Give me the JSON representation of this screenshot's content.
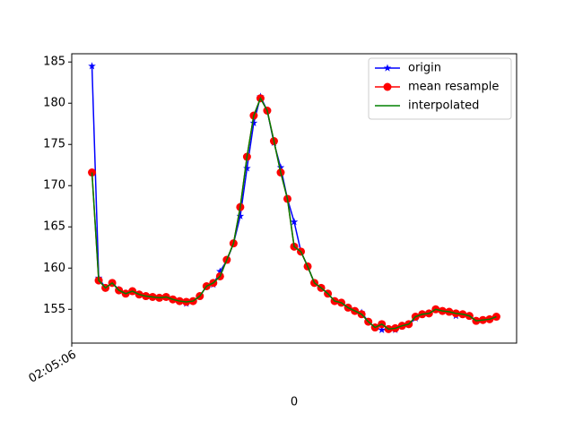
{
  "chart_data": {
    "type": "line",
    "xlabel": "0",
    "x": [
      0,
      1,
      2,
      3,
      4,
      5,
      6,
      7,
      8,
      9,
      10,
      11,
      12,
      13,
      14,
      15,
      16,
      17,
      18,
      19,
      20,
      21,
      22,
      23,
      24,
      25,
      26,
      27,
      28,
      29,
      30,
      31,
      32,
      33,
      34,
      35,
      36,
      37,
      38,
      39,
      40,
      41,
      42,
      43,
      44,
      45,
      46,
      47,
      48,
      49,
      50,
      51,
      52,
      53,
      54,
      55,
      56,
      57,
      58,
      59,
      60
    ],
    "xlim": [
      -3,
      63
    ],
    "xticks": [
      {
        "value": -3,
        "label": "02:05:06"
      }
    ],
    "ylim": [
      150.9,
      186.0
    ],
    "yticks": [
      155,
      160,
      165,
      170,
      175,
      180,
      185
    ],
    "legend": "upper right",
    "series": [
      {
        "name": "origin",
        "color": "#0000ff",
        "marker": "star",
        "values": [
          184.5,
          158.8,
          157.6,
          158.2,
          157.4,
          156.9,
          157.2,
          156.8,
          156.6,
          156.5,
          156.4,
          156.5,
          156.2,
          156.0,
          155.7,
          156.0,
          156.6,
          157.8,
          158.0,
          159.6,
          160.9,
          163.0,
          166.3,
          172.1,
          177.6,
          180.8,
          179.1,
          175.2,
          172.2,
          168.4,
          165.6,
          162.0,
          160.2,
          158.2,
          157.6,
          156.9,
          156.0,
          155.8,
          155.2,
          154.8,
          154.6,
          153.5,
          152.8,
          152.5,
          152.6,
          152.5,
          153.0,
          153.2,
          153.9,
          154.4,
          154.5,
          155.0,
          154.8,
          154.7,
          154.2,
          154.4,
          154.2,
          153.6,
          153.7,
          153.8,
          154.1
        ]
      },
      {
        "name": "mean resample",
        "color": "#ff0000",
        "marker": "circle",
        "values": [
          171.6,
          158.5,
          157.6,
          158.2,
          157.3,
          156.9,
          157.2,
          156.8,
          156.6,
          156.5,
          156.4,
          156.5,
          156.2,
          156.0,
          155.9,
          156.0,
          156.6,
          157.8,
          158.2,
          159.0,
          161.0,
          163.0,
          167.4,
          173.5,
          178.5,
          180.6,
          179.1,
          175.4,
          171.6,
          168.4,
          162.6,
          162.0,
          160.2,
          158.2,
          157.6,
          156.9,
          156.0,
          155.8,
          155.2,
          154.8,
          154.4,
          153.5,
          152.8,
          153.2,
          152.6,
          152.7,
          153.0,
          153.2,
          154.1,
          154.4,
          154.5,
          155.0,
          154.8,
          154.7,
          154.5,
          154.4,
          154.2,
          153.6,
          153.7,
          153.8,
          154.1
        ]
      },
      {
        "name": "interpolated",
        "color": "#008000",
        "values": [
          171.6,
          158.5,
          157.6,
          158.2,
          157.3,
          156.9,
          157.2,
          156.8,
          156.6,
          156.5,
          156.4,
          156.5,
          156.2,
          156.0,
          155.9,
          156.0,
          156.6,
          157.8,
          158.2,
          159.0,
          161.0,
          163.0,
          167.4,
          173.5,
          178.5,
          180.6,
          179.1,
          175.4,
          171.6,
          168.4,
          162.6,
          162.0,
          160.2,
          158.2,
          157.6,
          156.9,
          156.0,
          155.8,
          155.2,
          154.8,
          154.4,
          153.5,
          152.8,
          153.2,
          152.6,
          152.7,
          153.0,
          153.2,
          154.1,
          154.4,
          154.5,
          155.0,
          154.8,
          154.7,
          154.5,
          154.4,
          154.2,
          153.6,
          153.7,
          153.8,
          154.1
        ]
      }
    ]
  }
}
